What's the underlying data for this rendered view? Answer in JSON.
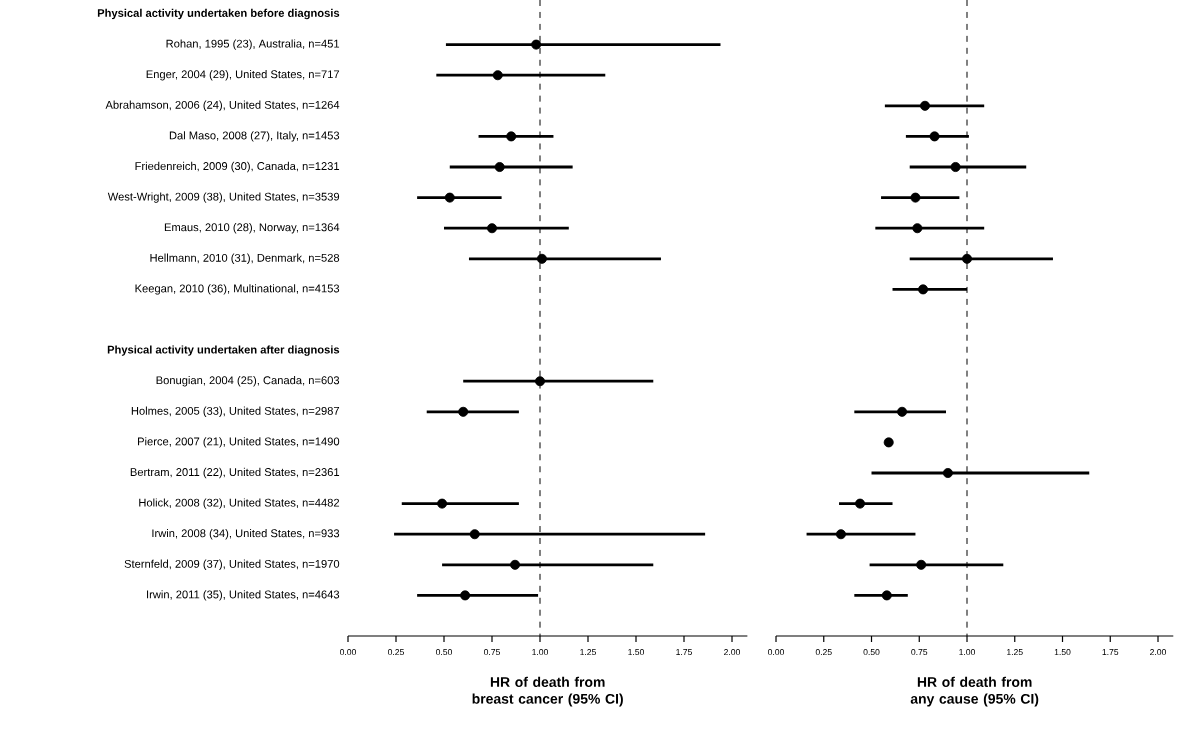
{
  "chart_data": [
    {
      "type": "scatter",
      "orientation": "horizontal",
      "color": "#000000",
      "marker": "circle",
      "xlabel": "HR of death from breast cancer (95% CI)",
      "annotations": [
        "Physical activity undertaken before diagnosis",
        "Physical activity undertaken after diagnosis"
      ],
      "categories": [
        null,
        "Rohan, 1995 (23), Australia, n=451",
        "Enger, 2004 (29), United States, n=717",
        "Abrahamson, 2006 (24), United States, n=1264",
        "Dal Maso, 2008 (27), Italy, n=1453",
        "Friedenreich, 2009 (30), Canada, n=1231",
        "West-Wright, 2009 (38), United States, n=3539",
        "Emaus, 2010 (28), Norway, n=1364",
        "Hellmann, 2010 (31), Denmark, n=528",
        "Keegan, 2010 (36), Multinational, n=4153",
        null,
        null,
        "Bonugian, 2004 (25), Canada, n=603",
        "Holmes, 2005 (33), United States, n=2987",
        "Pierce, 2007 (21), United States, n=1490",
        "Bertram, 2011 (22), United States, n=2361",
        "Holick, 2008 (32), United States, n=4482",
        "Irwin, 2008 (34), United States, n=933",
        "Sternfeld, 2009 (37), United States, n=1970",
        "Irwin, 2011 (35), United States, n=4643"
      ],
      "values": [
        null,
        0.98,
        0.78,
        null,
        0.85,
        0.79,
        0.53,
        0.75,
        1.01,
        null,
        null,
        null,
        1.0,
        0.6,
        null,
        null,
        0.49,
        0.66,
        0.87,
        0.61
      ],
      "errors": [
        null,
        [
          0.51,
          1.94
        ],
        [
          0.46,
          1.34
        ],
        null,
        [
          0.68,
          1.07
        ],
        [
          0.53,
          1.17
        ],
        [
          0.36,
          0.8
        ],
        [
          0.5,
          1.15
        ],
        [
          0.63,
          1.63
        ],
        null,
        null,
        null,
        [
          0.6,
          1.59
        ],
        [
          0.41,
          0.89
        ],
        null,
        null,
        [
          0.28,
          0.89
        ],
        [
          0.24,
          1.86
        ],
        [
          0.49,
          1.59
        ],
        [
          0.36,
          0.99
        ]
      ],
      "xlim": [
        0,
        2.08
      ],
      "xticks": [
        {
          "value": 0,
          "label": "0.00"
        },
        {
          "value": 0.25,
          "label": "0.25"
        },
        {
          "value": 0.5,
          "label": "0.50"
        },
        {
          "value": 0.75,
          "label": "0.75"
        },
        {
          "value": 1,
          "label": "1.00"
        },
        {
          "value": 1.25,
          "label": "1.25"
        },
        {
          "value": 1.5,
          "label": "1.50"
        },
        {
          "value": 1.75,
          "label": "1.75"
        },
        {
          "value": 2,
          "label": "2.00"
        }
      ],
      "ref_lines": [
        {
          "axis": "x",
          "value": 1,
          "color": "#000000",
          "line_style": "dashed"
        }
      ]
    },
    {
      "type": "scatter",
      "orientation": "horizontal",
      "color": "#000000",
      "marker": "circle",
      "tick_labels": "x",
      "xlabel": "HR of death from any cause (95% CI)",
      "categories": [
        null,
        null,
        null,
        null,
        null,
        null,
        null,
        null,
        null,
        null,
        null,
        null,
        null,
        null,
        null,
        null,
        null,
        null,
        null,
        null
      ],
      "values": [
        null,
        null,
        null,
        0.78,
        0.83,
        0.94,
        0.73,
        0.74,
        1.0,
        0.77,
        null,
        null,
        null,
        0.66,
        0.59,
        0.9,
        0.44,
        0.34,
        0.76,
        0.58
      ],
      "errors": [
        null,
        null,
        null,
        [
          0.57,
          1.09
        ],
        [
          0.68,
          1.01
        ],
        [
          0.7,
          1.31
        ],
        [
          0.55,
          0.96
        ],
        [
          0.52,
          1.09
        ],
        [
          0.7,
          1.45
        ],
        [
          0.61,
          1.0
        ],
        null,
        null,
        null,
        [
          0.41,
          0.89
        ],
        null,
        [
          0.5,
          1.64
        ],
        [
          0.33,
          0.61
        ],
        [
          0.16,
          0.73
        ],
        [
          0.49,
          1.19
        ],
        [
          0.41,
          0.69
        ]
      ],
      "xlim": [
        0,
        2.08
      ],
      "xticks": [
        {
          "value": 0,
          "label": "0.00"
        },
        {
          "value": 0.25,
          "label": "0.25"
        },
        {
          "value": 0.5,
          "label": "0.50"
        },
        {
          "value": 0.75,
          "label": "0.75"
        },
        {
          "value": 1,
          "label": "1.00"
        },
        {
          "value": 1.25,
          "label": "1.25"
        },
        {
          "value": 1.5,
          "label": "1.50"
        },
        {
          "value": 1.75,
          "label": "1.75"
        },
        {
          "value": 2,
          "label": "2.00"
        }
      ],
      "ref_lines": [
        {
          "axis": "x",
          "value": 1,
          "color": "#000000",
          "line_style": "dashed"
        }
      ]
    }
  ]
}
